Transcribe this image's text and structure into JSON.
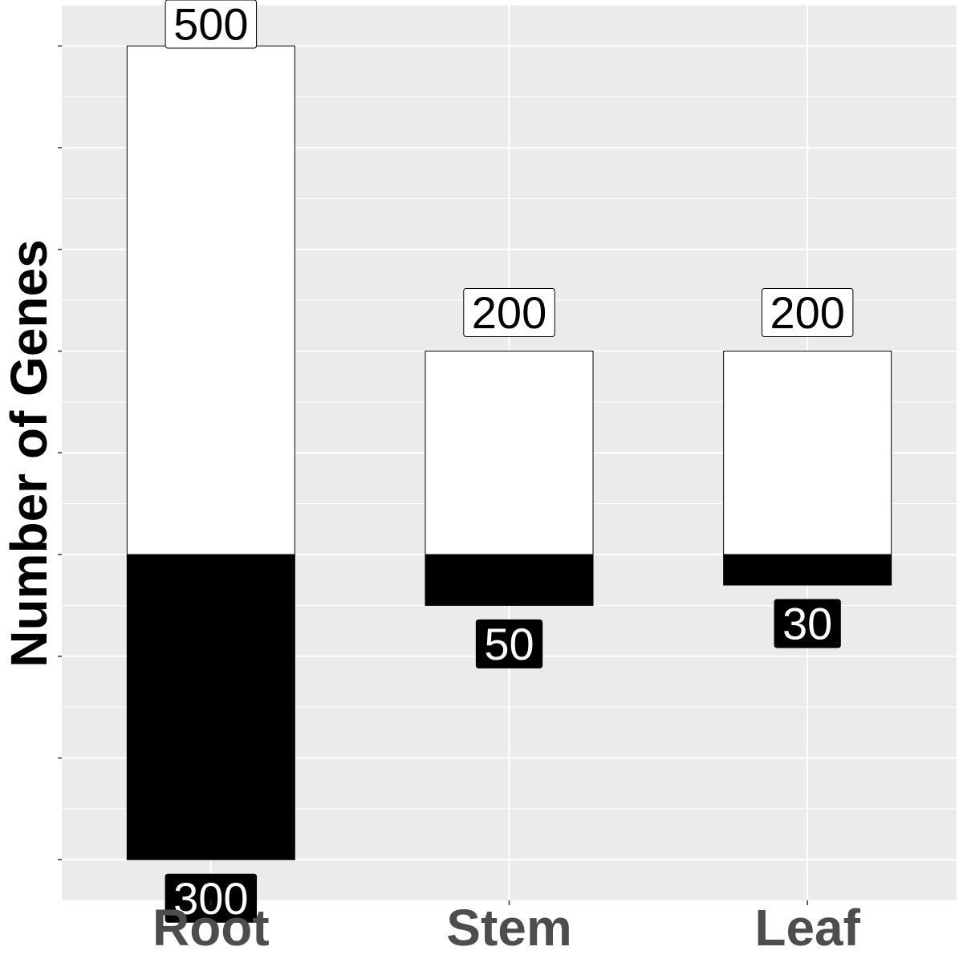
{
  "chart_data": {
    "type": "bar",
    "subtype": "diverging-stacked",
    "title": "",
    "xlabel": "",
    "ylabel": "Number of Genes",
    "categories": [
      "Root",
      "Stem",
      "Leaf"
    ],
    "series": [
      {
        "values": [
          500,
          200,
          200
        ],
        "color": "#ffffff",
        "label_fill": "#ffffff",
        "label_text_color": "#000000"
      },
      {
        "values": [
          -300,
          -50,
          -30
        ],
        "color": "#000000",
        "label_fill": "#000000",
        "label_text_color": "#ffffff"
      }
    ],
    "data_labels": {
      "positive": [
        "500",
        "200",
        "200"
      ],
      "negative": [
        "300",
        "50",
        "30"
      ]
    },
    "ylim": [
      -400,
      540
    ],
    "yticks": [
      -300,
      -200,
      -100,
      0,
      100,
      200,
      300,
      400,
      500
    ],
    "grid": true,
    "legend": "none",
    "panel_background": "#ebebeb",
    "grid_color": "#ffffff",
    "tick_label_color": "#4d4d4d"
  }
}
